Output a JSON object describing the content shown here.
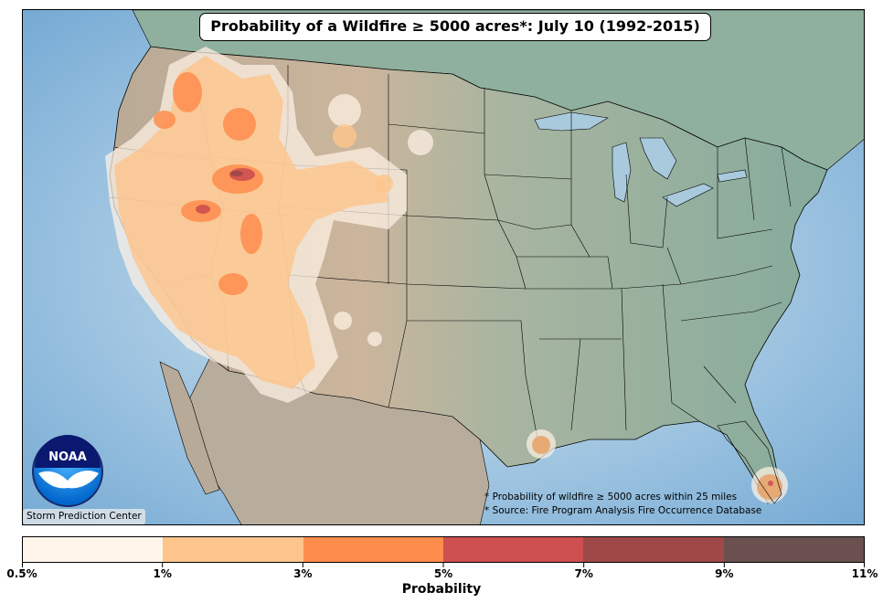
{
  "map": {
    "title": "Probability of a Wildfire ≥ 5000 acres*: July 10 (1992-2015)",
    "footnote_1": "* Probability of wildfire ≥ 5000 acres within 25 miles",
    "footnote_2": "* Source: Fire Program Analysis Fire Occurrence Database",
    "credit": "Storm Prediction Center",
    "logo_text": "NOAA",
    "region": "Contiguous United States",
    "colors": {
      "ocean": "#7fb0d6",
      "land_west": "#c9b39b",
      "land_east": "#8fb0a0"
    }
  },
  "legend": {
    "label": "Probability",
    "ticks": [
      "0.5%",
      "1%",
      "3%",
      "5%",
      "7%",
      "9%",
      "11%"
    ],
    "colors": [
      "#fff5eb",
      "#fdc48c",
      "#fd8d4c",
      "#cd4f4f",
      "#9e4848",
      "#6b5050"
    ]
  },
  "probability_areas": [
    {
      "region": "Pacific Northwest / Oregon-Idaho",
      "max_category": "5%"
    },
    {
      "region": "Northern Nevada / Great Basin",
      "max_category": "5%"
    },
    {
      "region": "Southern Idaho",
      "max_category": "7%"
    },
    {
      "region": "Arizona",
      "max_category": "3%"
    },
    {
      "region": "Montana",
      "max_category": "3%"
    },
    {
      "region": "Louisiana coast",
      "max_category": "3%"
    },
    {
      "region": "South Florida",
      "max_category": "5%"
    }
  ]
}
